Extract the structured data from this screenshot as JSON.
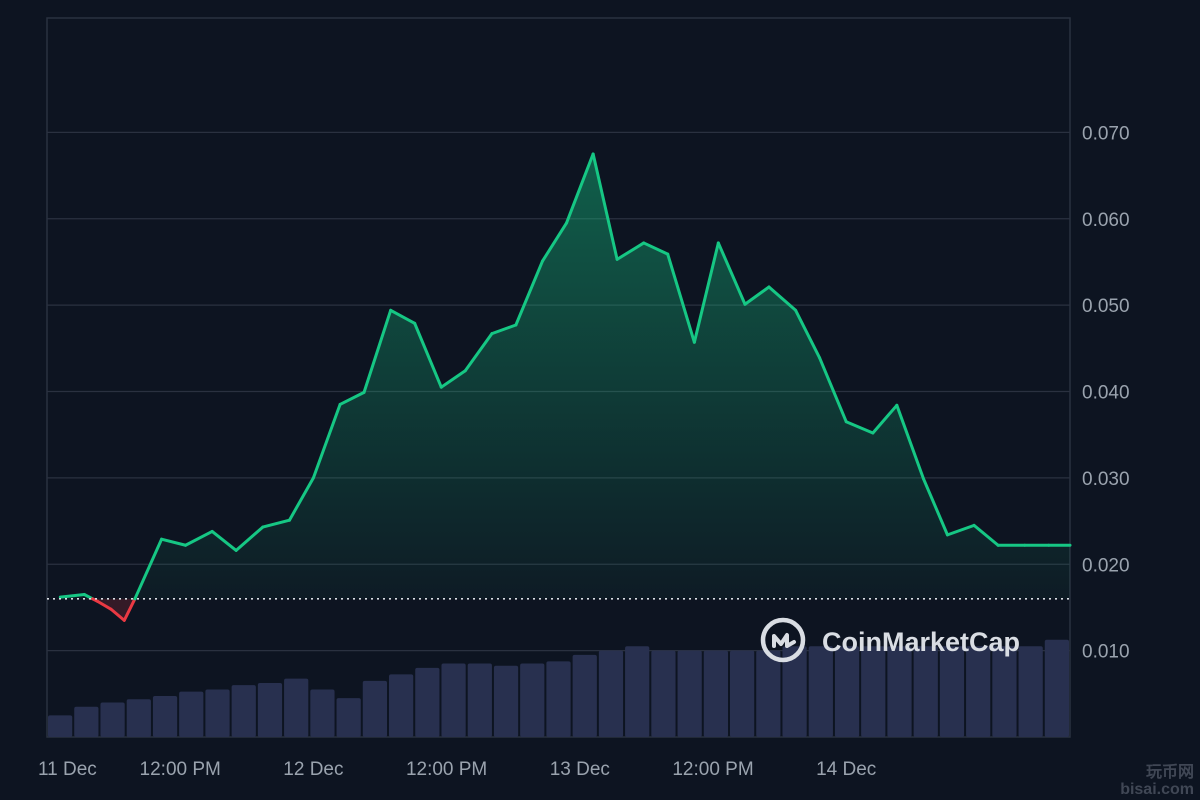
{
  "colors": {
    "background": "#0d1421",
    "grid": "#2a3140",
    "up_line": "#16c784",
    "down_line": "#ea3943",
    "area_top": "#16c784",
    "volume_bar": "#28304f",
    "baseline": "#d9dde3",
    "tick_text": "#9aa3ae",
    "watermark": "#d9dde3"
  },
  "watermark": {
    "text": "CoinMarketCap",
    "icon": "coinmarketcap-logo-icon"
  },
  "corner_watermark": {
    "line1": "玩币网",
    "line2": "bisai.com",
    "icon": "999-logo-icon"
  },
  "chart_data": {
    "type": "area",
    "title": "",
    "xlabel": "",
    "ylabel": "",
    "ylim": [
      0,
      0.08
    ],
    "y_ticks": [
      "0.010",
      "0.020",
      "0.030",
      "0.040",
      "0.050",
      "0.060",
      "0.070"
    ],
    "x_ticks": [
      "11 Dec",
      "12:00 PM",
      "12 Dec",
      "12:00 PM",
      "13 Dec",
      "12:00 PM",
      "14 Dec"
    ],
    "x_range_days": [
      0,
      3.84
    ],
    "x_tick_days": [
      0,
      0.5,
      1,
      1.5,
      2,
      2.5,
      3
    ],
    "baseline_value": 0.016,
    "grid": true,
    "y_axis_position": "right",
    "price": {
      "x_days": [
        0.05,
        0.14,
        0.19,
        0.24,
        0.29,
        0.33,
        0.43,
        0.52,
        0.62,
        0.71,
        0.81,
        0.91,
        1.0,
        1.1,
        1.19,
        1.29,
        1.38,
        1.48,
        1.57,
        1.67,
        1.76,
        1.86,
        1.95,
        2.05,
        2.14,
        2.24,
        2.33,
        2.43,
        2.52,
        2.62,
        2.71,
        2.81,
        2.9,
        3.0,
        3.1,
        3.19,
        3.29,
        3.38,
        3.48,
        3.57,
        3.67,
        3.76,
        3.84
      ],
      "y": [
        0.0162,
        0.0165,
        0.0157,
        0.0148,
        0.0135,
        0.016,
        0.0229,
        0.0222,
        0.0238,
        0.0216,
        0.0243,
        0.0251,
        0.03,
        0.0385,
        0.0399,
        0.0494,
        0.0479,
        0.0405,
        0.0424,
        0.0467,
        0.0477,
        0.0551,
        0.0595,
        0.0675,
        0.0553,
        0.0572,
        0.0559,
        0.0457,
        0.0572,
        0.0501,
        0.0521,
        0.0494,
        0.0439,
        0.0365,
        0.0352,
        0.0384,
        0.0299,
        0.0234,
        0.0245,
        0.0222,
        0.0222,
        0.0222,
        0.0222
      ]
    },
    "volume": {
      "relative_heights": [
        0.2,
        0.28,
        0.32,
        0.35,
        0.38,
        0.42,
        0.44,
        0.48,
        0.5,
        0.54,
        0.44,
        0.36,
        0.52,
        0.58,
        0.64,
        0.68,
        0.68,
        0.66,
        0.68,
        0.7,
        0.76,
        0.8,
        0.84,
        0.8,
        0.8,
        0.8,
        0.8,
        0.8,
        0.84,
        0.84,
        0.84,
        0.84,
        0.84,
        0.84,
        0.84,
        0.84,
        0.84,
        0.84,
        0.9
      ]
    }
  }
}
